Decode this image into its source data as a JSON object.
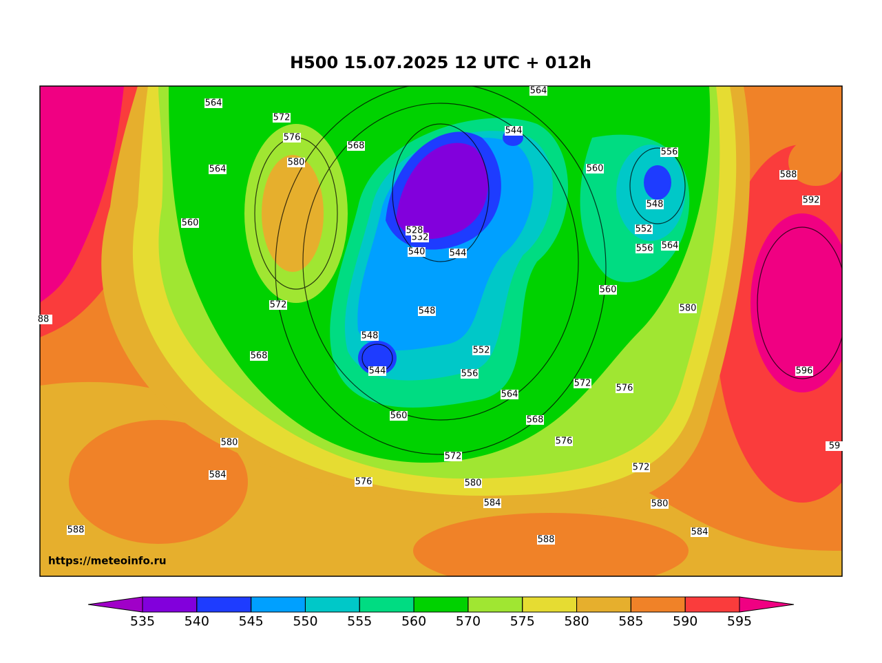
{
  "title": "H500  15.07.2025 12 UTC + 012h",
  "watermark": "https://meteoinfo.ru",
  "contour_labels": [
    "564",
    "572",
    "576",
    "580",
    "568",
    "564",
    "560",
    "572",
    "568",
    "580",
    "584",
    "588",
    "576",
    "572",
    "580",
    "584",
    "588",
    "576",
    "572",
    "580",
    "584",
    "560",
    "564",
    "568",
    "556",
    "552",
    "548",
    "544",
    "548",
    "540",
    "532",
    "528",
    "544",
    "544",
    "564",
    "560",
    "556",
    "548",
    "552",
    "556",
    "564",
    "560",
    "580",
    "572",
    "576",
    "588",
    "592",
    "596",
    "59",
    "88"
  ],
  "colorbar": {
    "ticks": [
      535,
      540,
      545,
      550,
      555,
      560,
      570,
      575,
      580,
      585,
      590,
      595
    ],
    "colors": [
      "#a000c8",
      "#8200dc",
      "#1e3cff",
      "#00a0ff",
      "#00c8c8",
      "#00dc82",
      "#00d200",
      "#a0e632",
      "#e6dc32",
      "#e6af2d",
      "#f08228",
      "#fa3c3c",
      "#f00082"
    ]
  }
}
